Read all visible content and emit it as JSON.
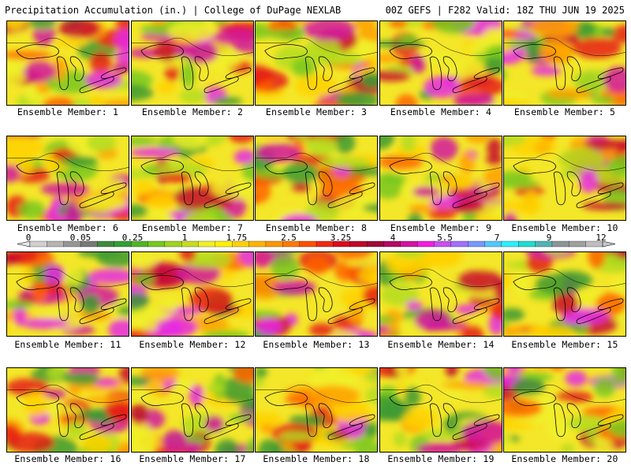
{
  "header": {
    "title_left": "Precipitation Accumulation (in.) | College of DuPage NEXLAB",
    "title_right": "00Z GEFS | F282 Valid: 18Z THU JUN 19 2025"
  },
  "panels": [
    {
      "label": "Ensemble Member: 1"
    },
    {
      "label": "Ensemble Member: 2"
    },
    {
      "label": "Ensemble Member: 3"
    },
    {
      "label": "Ensemble Member: 4"
    },
    {
      "label": "Ensemble Member: 5"
    },
    {
      "label": "Ensemble Member: 6"
    },
    {
      "label": "Ensemble Member: 7"
    },
    {
      "label": "Ensemble Member: 8"
    },
    {
      "label": "Ensemble Member: 9"
    },
    {
      "label": "Ensemble Member: 10"
    },
    {
      "label": "Ensemble Member: 11"
    },
    {
      "label": "Ensemble Member: 12"
    },
    {
      "label": "Ensemble Member: 13"
    },
    {
      "label": "Ensemble Member: 14"
    },
    {
      "label": "Ensemble Member: 15"
    },
    {
      "label": "Ensemble Member: 16"
    },
    {
      "label": "Ensemble Member: 17"
    },
    {
      "label": "Ensemble Member: 18"
    },
    {
      "label": "Ensemble Member: 19"
    },
    {
      "label": "Ensemble Member: 20"
    }
  ],
  "colorbar": {
    "labels": [
      "0",
      "0.05",
      "0.25",
      "1",
      "1.75",
      "2.5",
      "3.25",
      "4",
      "5.5",
      "7",
      "9",
      "12"
    ],
    "colors": [
      "#d0d0d0",
      "#b4b4b4",
      "#969696",
      "#787878",
      "#3c8c3c",
      "#32a032",
      "#50b428",
      "#78c81e",
      "#a0d21e",
      "#c8dc1e",
      "#f0f028",
      "#fff000",
      "#ffd200",
      "#ffb400",
      "#ff9600",
      "#ff7800",
      "#ff5000",
      "#f02814",
      "#dc0a1e",
      "#be0a28",
      "#a00a3c",
      "#b40a64",
      "#d214a0",
      "#f01ee1",
      "#c850f0",
      "#a070ff",
      "#7896ff",
      "#50c8ff",
      "#28f0ff",
      "#1edcd2",
      "#50b4b4",
      "#8c9696",
      "#a0a0a0",
      "#bebebe"
    ]
  }
}
